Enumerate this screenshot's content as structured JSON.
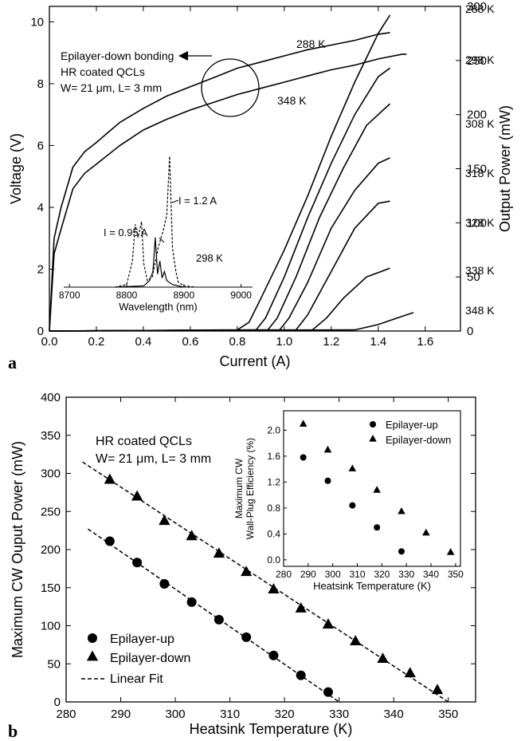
{
  "chart_data": [
    {
      "panel_label": "a",
      "type": "line",
      "xlabel": "Current (A)",
      "ylabel_left": "Voltage (V)",
      "ylabel_right": "Output Power (mW)",
      "xlim": [
        0,
        1.75
      ],
      "ylim_left": [
        0,
        10.5
      ],
      "ylim_right": [
        0,
        300
      ],
      "xticks": [
        0.0,
        0.2,
        0.4,
        0.6,
        0.8,
        1.0,
        1.2,
        1.4,
        1.6
      ],
      "xtick_labels": [
        "0.0",
        "0.2",
        "0.4",
        "0.6",
        "0.8",
        "1.0",
        "1.2",
        "1.4",
        "1.6"
      ],
      "yticks_left": [
        0,
        2,
        4,
        6,
        8,
        10
      ],
      "yticks_right": [
        0,
        50,
        100,
        150,
        200,
        250,
        300
      ],
      "annotations": [
        "Epilayer-down bonding",
        "HR coated QCLs",
        "W= 21 μm, L= 3 mm"
      ],
      "voltage_series": [
        {
          "name": "288 K",
          "axis": "left",
          "x": [
            0,
            0.02,
            0.05,
            0.1,
            0.15,
            0.2,
            0.3,
            0.4,
            0.5,
            0.6,
            0.7,
            0.8,
            0.9,
            1.0,
            1.1,
            1.2,
            1.3,
            1.4,
            1.45
          ],
          "y": [
            0,
            3.0,
            4.0,
            5.3,
            5.8,
            6.1,
            6.75,
            7.2,
            7.6,
            7.9,
            8.2,
            8.5,
            8.7,
            8.9,
            9.1,
            9.25,
            9.4,
            9.6,
            9.65
          ]
        },
        {
          "name": "348 K",
          "axis": "left",
          "x": [
            0,
            0.02,
            0.05,
            0.1,
            0.15,
            0.2,
            0.3,
            0.4,
            0.5,
            0.6,
            0.7,
            0.8,
            0.9,
            1.0,
            1.1,
            1.2,
            1.3,
            1.4,
            1.5,
            1.52
          ],
          "y": [
            0,
            2.5,
            3.3,
            4.6,
            5.1,
            5.4,
            6.0,
            6.5,
            6.85,
            7.15,
            7.4,
            7.65,
            7.85,
            8.05,
            8.25,
            8.45,
            8.6,
            8.8,
            8.95,
            8.95
          ]
        }
      ],
      "power_series": [
        {
          "name": "288 K",
          "axis": "right",
          "x": [
            0,
            0.8,
            0.85,
            0.9,
            1.0,
            1.1,
            1.2,
            1.3,
            1.4,
            1.45
          ],
          "y": [
            0,
            1,
            8,
            30,
            75,
            125,
            180,
            230,
            275,
            292
          ]
        },
        {
          "name": "298 K",
          "axis": "right",
          "x": [
            0,
            0.88,
            0.92,
            1.0,
            1.1,
            1.2,
            1.3,
            1.4,
            1.45
          ],
          "y": [
            0,
            1,
            12,
            50,
            105,
            155,
            200,
            235,
            243
          ]
        },
        {
          "name": "308 K",
          "axis": "right",
          "x": [
            0,
            0.93,
            0.97,
            1.05,
            1.15,
            1.25,
            1.35,
            1.45
          ],
          "y": [
            0,
            1,
            12,
            50,
            105,
            150,
            190,
            210
          ]
        },
        {
          "name": "318 K",
          "axis": "right",
          "x": [
            0,
            0.98,
            1.02,
            1.1,
            1.2,
            1.3,
            1.4,
            1.45
          ],
          "y": [
            0,
            1,
            12,
            45,
            95,
            130,
            155,
            160
          ]
        },
        {
          "name": "328 K",
          "axis": "right",
          "x": [
            0,
            1.05,
            1.1,
            1.2,
            1.3,
            1.4,
            1.45
          ],
          "y": [
            0,
            1,
            15,
            55,
            95,
            118,
            120
          ]
        },
        {
          "name": "338 K",
          "axis": "right",
          "x": [
            0,
            1.12,
            1.18,
            1.25,
            1.35,
            1.45
          ],
          "y": [
            0,
            1,
            12,
            30,
            50,
            58
          ]
        },
        {
          "name": "348 K",
          "axis": "right",
          "x": [
            0,
            1.3,
            1.4,
            1.48,
            1.55
          ],
          "y": [
            0,
            1,
            6,
            12,
            17
          ]
        }
      ],
      "curve_labels": [
        "288 K",
        "348 K",
        "288 K",
        "298 K",
        "308 K",
        "318 K",
        "328 K",
        "338 K",
        "348 K"
      ],
      "inset": {
        "type": "line",
        "xlabel": "Wavelength (nm)",
        "xlim": [
          8690,
          9020
        ],
        "xticks": [
          8700,
          8800,
          8900,
          9000
        ],
        "xtick_labels": [
          "8700",
          "8800",
          "8900",
          "9000"
        ],
        "labels": [
          "I = 0.95 A",
          "I = 1.2 A",
          "298 K"
        ],
        "series": [
          {
            "name": "I = 0.95 A",
            "style": "solid",
            "x": [
              8780,
              8830,
              8840,
              8846,
              8850,
              8854,
              8858,
              8862,
              8866,
              8870,
              8880,
              8900
            ],
            "y": [
              0,
              0.01,
              0.05,
              0.12,
              0.38,
              0.1,
              0.2,
              0.07,
              0.12,
              0.05,
              0.02,
              0
            ]
          },
          {
            "name": "I = 1.2 A",
            "style": "dashed",
            "x": [
              8780,
              8800,
              8810,
              8815,
              8820,
              8826,
              8830,
              8836,
              8845,
              8855,
              8865,
              8870,
              8875,
              8880,
              8886,
              8890,
              8900,
              8920
            ],
            "y": [
              0,
              0.02,
              0.2,
              0.48,
              0.38,
              0.5,
              0.18,
              0.05,
              0.08,
              0.3,
              0.45,
              0.55,
              1.0,
              0.3,
              0.12,
              0.04,
              0.01,
              0
            ]
          }
        ]
      }
    },
    {
      "panel_label": "b",
      "type": "scatter",
      "xlabel": "Heatsink Temperature (K)",
      "ylabel": "Maximum CW Ouput Power (mW)",
      "xlim": [
        280,
        355
      ],
      "ylim": [
        0,
        400
      ],
      "xticks": [
        280,
        290,
        300,
        310,
        320,
        330,
        340,
        350
      ],
      "yticks": [
        0,
        50,
        100,
        150,
        200,
        250,
        300,
        350,
        400
      ],
      "annotations": [
        "HR coated QCLs",
        "W= 21 μm, L= 3 mm"
      ],
      "legend": [
        "Epilayer-up",
        "Epilayer-down",
        "Linear Fit"
      ],
      "legend_position": "bottom-left",
      "series": [
        {
          "name": "Epilayer-up",
          "marker": "circle",
          "x": [
            288,
            293,
            298,
            303,
            308,
            313,
            318,
            323,
            328
          ],
          "y": [
            211,
            183,
            155,
            131,
            108,
            85,
            61,
            35,
            13
          ]
        },
        {
          "name": "Epilayer-down",
          "marker": "triangle",
          "x": [
            288,
            293,
            298,
            303,
            308,
            313,
            318,
            323,
            328,
            333,
            338,
            343,
            348
          ],
          "y": [
            292,
            270,
            238,
            218,
            195,
            171,
            148,
            123,
            102,
            80,
            57,
            38,
            16
          ]
        }
      ],
      "fits": [
        {
          "name": "Linear Fit",
          "for": "Epilayer-up",
          "x": [
            284,
            330
          ],
          "y": [
            227,
            0
          ]
        },
        {
          "name": "Linear Fit",
          "for": "Epilayer-down",
          "x": [
            283,
            350
          ],
          "y": [
            315,
            0
          ]
        }
      ],
      "inset": {
        "type": "scatter",
        "xlabel": "Heatsink Temperature (K)",
        "ylabel_line1": "Maximum CW",
        "ylabel_line2": "Wall-Plug Efficiency (%)",
        "xlim": [
          280,
          352
        ],
        "ylim": [
          -0.1,
          2.3
        ],
        "xticks": [
          280,
          290,
          300,
          310,
          320,
          330,
          340,
          350
        ],
        "yticks": [
          0.0,
          0.4,
          0.8,
          1.2,
          1.6,
          2.0
        ],
        "ytick_labels": [
          "0.0",
          "0.4",
          "0.8",
          "1.2",
          "1.6",
          "2.0"
        ],
        "legend": [
          "Epilayer-up",
          "Epilayer-down"
        ],
        "series": [
          {
            "name": "Epilayer-up",
            "marker": "circle",
            "x": [
              288,
              298,
              308,
              318,
              328
            ],
            "y": [
              1.58,
              1.22,
              0.84,
              0.5,
              0.13
            ]
          },
          {
            "name": "Epilayer-down",
            "marker": "triangle",
            "x": [
              288,
              298,
              308,
              318,
              328,
              338,
              348
            ],
            "y": [
              2.1,
              1.7,
              1.41,
              1.08,
              0.75,
              0.42,
              0.12
            ]
          }
        ]
      }
    }
  ]
}
